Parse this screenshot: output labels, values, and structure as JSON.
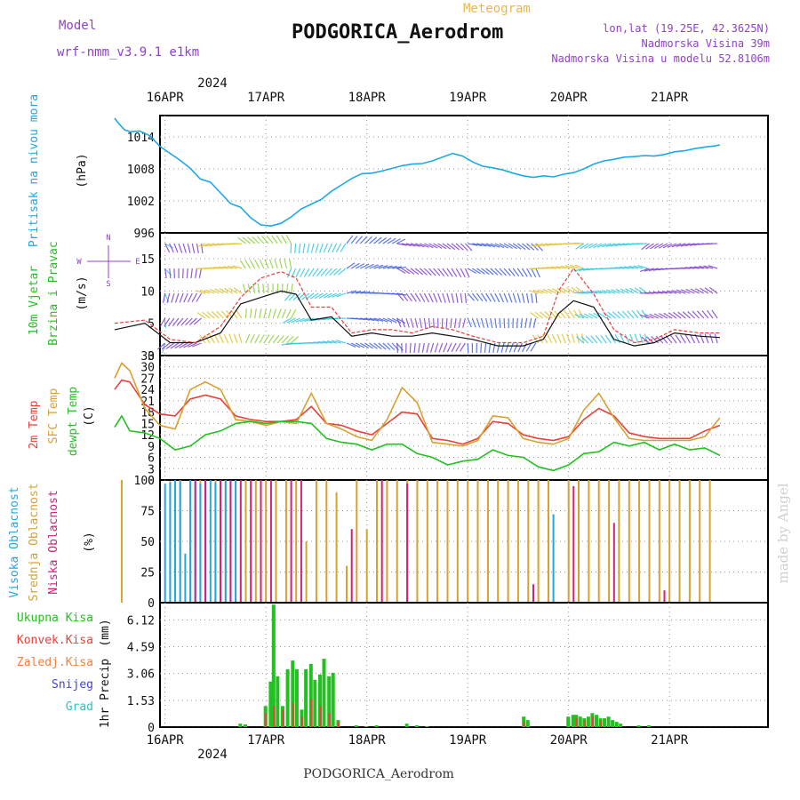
{
  "header": {
    "model_label": "Model",
    "model_name": "wrf-nmm_v3.9.1 e1km",
    "meteogram_label": "Meteogram",
    "station_title": "PODGORICA_Aerodrom",
    "coords": "lon,lat (19.25E, 42.3625N)",
    "elevation": "Nadmorska Visina 39m",
    "model_elevation": "Nadmorska Visina u modelu 52.8106m",
    "watermark": "made by Angel",
    "footer_station": "PODGORICA_Aerodrom"
  },
  "colors": {
    "pressure": "#1ea8e6",
    "temp2m": "#e8403a",
    "sfc": "#d9a032",
    "dewpt": "#22c020",
    "high_cloud": "#1ea8e6",
    "mid_cloud": "#d9a032",
    "low_cloud": "#d0207a",
    "total_precip": "#22c020",
    "convective": "#e8403a",
    "freezing": "#f08040",
    "snow": "#4040e0",
    "hail": "#30c0c0",
    "model_text": "#9040c8",
    "meteogram_text": "#e8b84a"
  },
  "chart_data": {
    "type": "line",
    "year": "2024",
    "days": [
      "16APR",
      "17APR",
      "18APR",
      "19APR",
      "20APR",
      "21APR"
    ],
    "panels": [
      {
        "id": "pressure",
        "type": "line",
        "ylabel": "Pritisak na nivou mora",
        "unit": "(hPa)",
        "yticks": [
          "1014",
          "1008",
          "1002",
          "996"
        ],
        "ylim": [
          996,
          1018
        ],
        "series": [
          {
            "name": "pressure",
            "x": [
              0,
              0.05,
              0.1,
              0.15,
              0.25,
              0.35,
              0.45,
              0.55,
              0.65,
              0.75,
              0.85,
              0.95,
              1.05,
              1.15,
              1.25,
              1.35,
              1.45,
              1.55,
              1.65,
              1.75,
              1.85,
              1.95,
              2.05,
              2.15,
              2.25,
              2.35,
              2.45,
              2.55,
              2.65,
              2.75,
              2.85,
              2.95,
              3.05,
              3.15,
              3.25,
              3.35,
              3.45,
              3.55,
              3.65,
              3.75,
              3.85,
              3.95,
              4.05,
              4.15,
              4.25,
              4.35,
              4.45,
              4.55,
              4.65,
              4.75,
              4.85,
              4.95,
              5.05,
              5.15,
              5.25,
              5.35,
              5.45,
              5.55,
              5.65,
              5.75,
              5.85,
              5.95,
              6.0
            ],
            "values": [
              1017.5,
              1016.3,
              1015.3,
              1015.0,
              1015.1,
              1014.2,
              1012.2,
              1010.9,
              1009.6,
              1008.1,
              1006.1,
              1005.5,
              1003.5,
              1001.5,
              1000.8,
              998.8,
              997.5,
              997.3,
              997.8,
              999.0,
              1000.5,
              1001.4,
              1002.3,
              1003.8,
              1005.0,
              1006.2,
              1007.1,
              1007.2,
              1007.6,
              1008.1,
              1008.6,
              1008.9,
              1009.0,
              1009.5,
              1010.2,
              1010.9,
              1010.4,
              1009.3,
              1008.5,
              1008.2,
              1007.8,
              1007.2,
              1006.7,
              1006.4,
              1006.7,
              1006.5,
              1007.0,
              1007.3,
              1008.0,
              1008.9,
              1009.5,
              1009.8,
              1010.2,
              1010.3,
              1010.5,
              1010.4,
              1010.7,
              1011.2,
              1011.4,
              1011.8,
              1012.1,
              1012.3,
              1012.5
            ]
          }
        ]
      },
      {
        "id": "wind",
        "type": "line",
        "ylabel": "10m Vjetar",
        "ylabel2": "Brzina i Pravac",
        "unit": "(m/s)",
        "compass": {
          "n": "N",
          "w": "W",
          "e": "E",
          "s": "S"
        },
        "yticks": [
          "15",
          "10",
          "5",
          "0"
        ],
        "ylim": [
          0,
          19
        ],
        "speed_x": [
          0,
          0.3,
          0.55,
          0.8,
          1.05,
          1.25,
          1.45,
          1.65,
          1.8,
          1.95,
          2.15,
          2.35,
          2.55,
          2.75,
          2.95,
          3.15,
          3.35,
          3.55,
          3.8,
          4.05,
          4.25,
          4.4,
          4.55,
          4.75,
          4.95,
          5.15,
          5.35,
          5.55,
          5.8,
          6.0
        ],
        "speed": [
          4.0,
          5.0,
          2.0,
          2.0,
          3.5,
          8.0,
          9.0,
          10.0,
          9.5,
          5.5,
          6.0,
          3.0,
          3.5,
          3.0,
          3.0,
          3.5,
          3.0,
          2.5,
          1.5,
          1.5,
          2.5,
          6.5,
          8.5,
          7.5,
          2.5,
          1.5,
          2.0,
          3.5,
          3.0,
          2.8
        ],
        "gust_x": [
          0,
          0.3,
          0.55,
          0.8,
          1.05,
          1.25,
          1.45,
          1.65,
          1.8,
          1.95,
          2.15,
          2.35,
          2.55,
          2.75,
          2.95,
          3.15,
          3.35,
          3.55,
          3.8,
          4.05,
          4.25,
          4.4,
          4.55,
          4.75,
          4.95,
          5.15,
          5.35,
          5.55,
          5.8,
          6.0
        ],
        "gust": [
          5.0,
          5.5,
          2.5,
          2.0,
          4.5,
          9.0,
          12.0,
          13.0,
          12.0,
          7.5,
          7.5,
          3.5,
          4.0,
          4.0,
          3.5,
          4.5,
          4.0,
          3.0,
          2.0,
          2.0,
          3.0,
          10.0,
          13.5,
          9.5,
          4.0,
          2.0,
          2.5,
          4.0,
          3.5,
          3.5
        ]
      },
      {
        "id": "temperature",
        "type": "line",
        "ylabel": "2m Temp",
        "ylabel2": "SFC Temp",
        "ylabel3": "dewpt Temp",
        "unit": "(C)",
        "yticks": [
          "33",
          "30",
          "27",
          "24",
          "21",
          "18",
          "15",
          "12",
          "9",
          "6",
          "3",
          "0"
        ],
        "ylim": [
          0,
          33
        ],
        "series": [
          {
            "name": "2m Temp",
            "x": [
              0,
              0.07,
              0.15,
              0.3,
              0.45,
              0.6,
              0.75,
              0.9,
              1.05,
              1.2,
              1.35,
              1.5,
              1.65,
              1.8,
              1.95,
              2.1,
              2.25,
              2.4,
              2.55,
              2.7,
              2.85,
              3.0,
              3.15,
              3.3,
              3.45,
              3.6,
              3.75,
              3.9,
              4.05,
              4.2,
              4.35,
              4.5,
              4.65,
              4.8,
              4.95,
              5.1,
              5.25,
              5.4,
              5.55,
              5.7,
              5.85,
              6.0
            ],
            "values": [
              24.0,
              26.5,
              26.0,
              20.0,
              17.5,
              17.0,
              21.5,
              22.5,
              21.5,
              17.0,
              16.0,
              15.5,
              15.5,
              16.0,
              19.5,
              15.0,
              14.5,
              13.0,
              12.0,
              15.0,
              18.0,
              17.5,
              11.0,
              10.5,
              9.5,
              11.0,
              15.5,
              15.0,
              12.0,
              11.0,
              10.5,
              11.5,
              16.0,
              19.0,
              17.0,
              12.5,
              11.5,
              11.0,
              11.0,
              11.0,
              13.0,
              14.5
            ]
          },
          {
            "name": "SFC Temp",
            "x": [
              0,
              0.07,
              0.15,
              0.3,
              0.45,
              0.6,
              0.75,
              0.9,
              1.05,
              1.2,
              1.35,
              1.5,
              1.65,
              1.8,
              1.95,
              2.1,
              2.25,
              2.4,
              2.55,
              2.7,
              2.85,
              3.0,
              3.15,
              3.3,
              3.45,
              3.6,
              3.75,
              3.9,
              4.05,
              4.2,
              4.35,
              4.5,
              4.65,
              4.8,
              4.95,
              5.1,
              5.25,
              5.4,
              5.55,
              5.7,
              5.85,
              6.0
            ],
            "values": [
              27.0,
              31.0,
              29.0,
              19.0,
              14.5,
              13.5,
              24.0,
              26.0,
              24.0,
              16.0,
              15.5,
              14.5,
              15.5,
              15.0,
              23.0,
              15.0,
              13.5,
              11.5,
              10.5,
              16.0,
              24.5,
              20.5,
              10.0,
              9.5,
              9.0,
              10.5,
              17.0,
              16.5,
              11.0,
              10.0,
              9.5,
              11.0,
              18.5,
              23.0,
              16.5,
              11.0,
              10.5,
              10.5,
              10.5,
              10.5,
              11.5,
              16.5
            ]
          },
          {
            "name": "dewpt Temp",
            "x": [
              0,
              0.07,
              0.15,
              0.3,
              0.45,
              0.6,
              0.75,
              0.9,
              1.05,
              1.2,
              1.35,
              1.5,
              1.65,
              1.8,
              1.95,
              2.1,
              2.25,
              2.4,
              2.55,
              2.7,
              2.85,
              3.0,
              3.15,
              3.3,
              3.45,
              3.6,
              3.75,
              3.9,
              4.05,
              4.2,
              4.35,
              4.5,
              4.65,
              4.8,
              4.95,
              5.1,
              5.25,
              5.4,
              5.55,
              5.7,
              5.85,
              6.0
            ],
            "values": [
              14.0,
              17.0,
              13.0,
              12.5,
              11.0,
              8.0,
              9.0,
              12.0,
              13.0,
              15.0,
              15.5,
              15.0,
              15.5,
              15.5,
              15.0,
              11.0,
              10.0,
              9.5,
              8.0,
              9.5,
              9.5,
              7.0,
              6.0,
              4.0,
              5.0,
              5.5,
              8.0,
              6.5,
              6.0,
              3.5,
              2.5,
              4.0,
              7.0,
              7.5,
              10.0,
              9.0,
              10.0,
              8.0,
              9.5,
              8.0,
              8.5,
              6.5
            ]
          }
        ]
      },
      {
        "id": "clouds",
        "type": "bar",
        "ylabel": "Visoka Oblacnost",
        "ylabel2": "Srednja Oblacnost",
        "ylabel3": "Niska Oblacnost",
        "unit": "(%)",
        "yticks": [
          "100",
          "75",
          "50",
          "25",
          "0"
        ],
        "ylim": [
          0,
          100
        ],
        "high_x": [
          0.5,
          0.55,
          0.6,
          0.65,
          0.7,
          0.75,
          0.8,
          0.85,
          0.9,
          0.95,
          1.0,
          1.05,
          1.1,
          1.15,
          1.2,
          4.35
        ],
        "high": [
          97,
          98,
          100,
          99,
          40,
          100,
          100,
          97,
          99,
          100,
          98,
          100,
          100,
          99,
          100,
          72
        ],
        "mid_x": [
          0.07,
          0.55,
          0.65,
          0.75,
          0.85,
          0.9,
          1.0,
          1.1,
          1.2,
          1.3,
          1.4,
          1.5,
          1.6,
          1.7,
          1.8,
          1.9,
          2.0,
          2.1,
          2.2,
          2.3,
          2.4,
          2.5,
          2.6,
          2.7,
          2.8,
          2.9,
          3.0,
          3.1,
          3.2,
          3.3,
          3.4,
          3.5,
          3.6,
          3.7,
          3.8,
          3.9,
          4.0,
          4.1,
          4.2,
          4.3,
          4.5,
          4.6,
          4.7,
          4.8,
          4.9,
          5.0,
          5.1,
          5.2,
          5.3,
          5.4,
          5.5,
          5.6,
          5.7,
          5.8,
          5.9
        ],
        "mid": [
          100,
          99,
          100,
          100,
          100,
          100,
          100,
          100,
          100,
          100,
          100,
          100,
          100,
          100,
          100,
          50,
          100,
          100,
          90,
          30,
          100,
          60,
          100,
          100,
          100,
          100,
          100,
          100,
          100,
          100,
          100,
          100,
          100,
          100,
          100,
          100,
          100,
          100,
          100,
          100,
          100,
          100,
          100,
          100,
          100,
          100,
          100,
          100,
          100,
          100,
          100,
          100,
          100,
          100,
          100
        ],
        "low_x": [
          0.8,
          0.9,
          1.05,
          1.15,
          1.25,
          1.35,
          1.45,
          1.55,
          1.75,
          1.85,
          2.35,
          2.65,
          2.9,
          4.15,
          4.55,
          4.95,
          5.45
        ],
        "low": [
          100,
          100,
          100,
          100,
          100,
          100,
          100,
          100,
          100,
          100,
          60,
          100,
          97,
          15,
          95,
          65,
          10
        ]
      },
      {
        "id": "precip",
        "type": "bar",
        "ylabel": "1hr Precip",
        "unit": "(mm)",
        "legend": [
          "Ukupna Kisa",
          "Konvek.Kisa",
          "Zaledj.Kisa",
          "Snijeg",
          "Grad"
        ],
        "yticks": [
          "6.12",
          "4.59",
          "3.06",
          "1.53",
          "0"
        ],
        "ylim": [
          0,
          7.1
        ],
        "total_x": [
          1.25,
          1.3,
          1.5,
          1.55,
          1.58,
          1.62,
          1.67,
          1.72,
          1.77,
          1.81,
          1.86,
          1.9,
          1.95,
          1.99,
          2.04,
          2.08,
          2.13,
          2.17,
          2.22,
          2.4,
          2.5,
          2.6,
          2.9,
          3.0,
          3.1,
          4.06,
          4.1,
          4.5,
          4.55,
          4.58,
          4.62,
          4.66,
          4.7,
          4.74,
          4.78,
          4.82,
          4.86,
          4.9,
          4.94,
          4.98,
          5.02,
          5.2,
          5.3
        ],
        "total": [
          0.2,
          0.15,
          1.2,
          2.6,
          6.99,
          2.9,
          1.2,
          3.3,
          3.8,
          3.3,
          1.0,
          3.3,
          3.6,
          2.7,
          3.0,
          3.9,
          2.9,
          3.1,
          0.4,
          0.1,
          0.05,
          0.1,
          0.2,
          0.1,
          0.05,
          0.6,
          0.4,
          0.6,
          0.7,
          0.7,
          0.6,
          0.5,
          0.6,
          0.8,
          0.7,
          0.5,
          0.5,
          0.6,
          0.4,
          0.3,
          0.2,
          0.1,
          0.1
        ],
        "conv_x": [
          1.5,
          1.58,
          1.67,
          1.77,
          1.86,
          1.95,
          2.04,
          2.13,
          2.22,
          4.06,
          4.58,
          4.66,
          4.74,
          4.82
        ],
        "conv": [
          0.8,
          1.2,
          1.0,
          1.4,
          0.6,
          1.6,
          1.2,
          0.8,
          0.3,
          0.3,
          0.5,
          0.4,
          0.6,
          0.4
        ]
      }
    ]
  }
}
